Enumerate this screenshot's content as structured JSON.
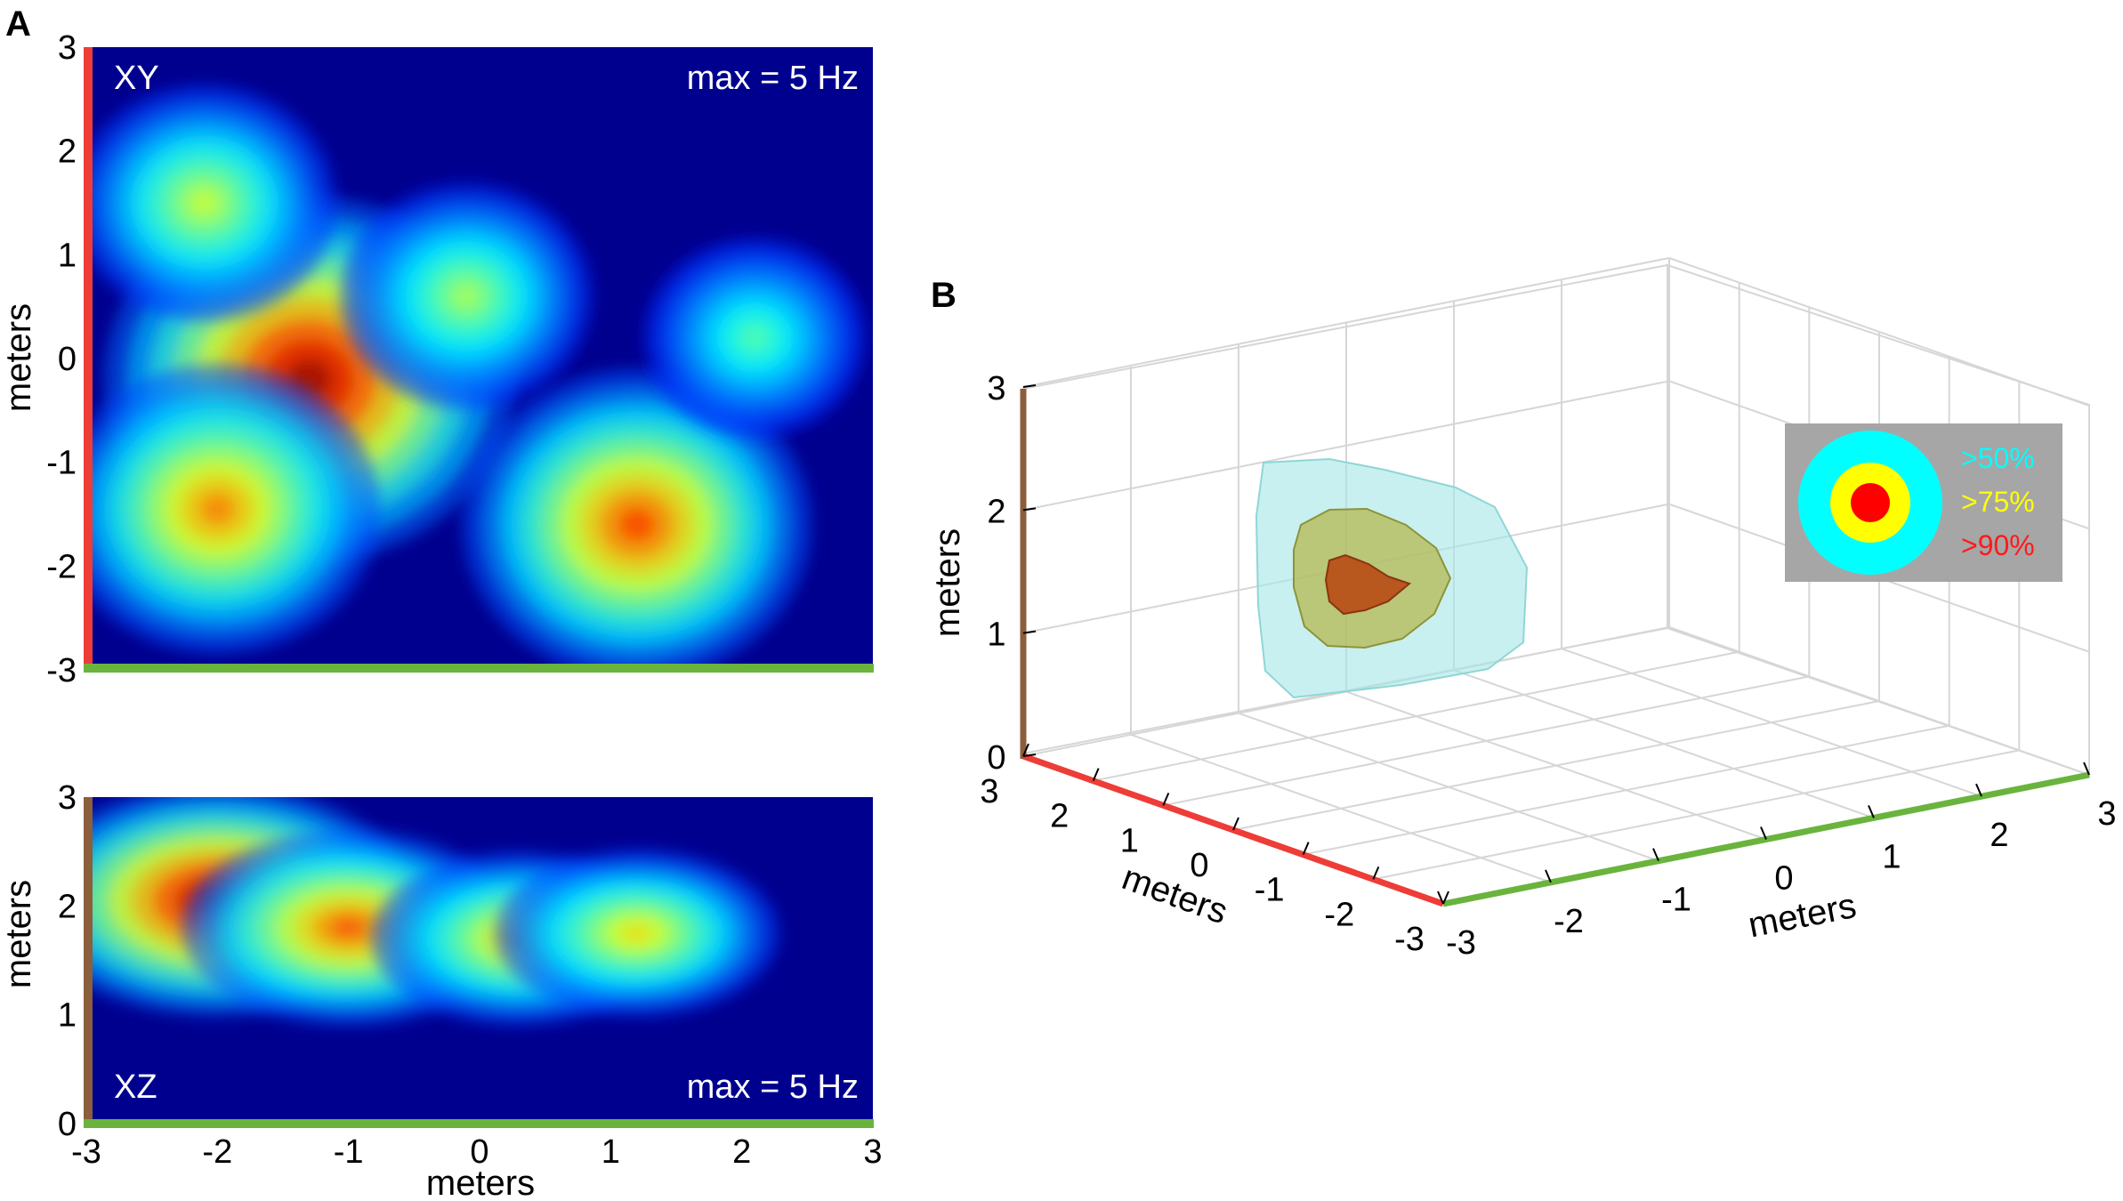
{
  "chart_data": [
    {
      "type": "heatmap",
      "panel": "A",
      "name": "XY",
      "label": "XY",
      "annotation": "max = 5 Hz",
      "max_rate_hz": 5,
      "colormap": "jet",
      "xlabel": "",
      "ylabel": "meters",
      "xlim": [
        -3,
        3
      ],
      "ylim": [
        -3,
        3
      ],
      "yticks": [
        "3",
        "2",
        "1",
        "0",
        "-1",
        "-2",
        "-3"
      ],
      "hotspots": [
        {
          "x": -1.3,
          "y": -0.2,
          "intensity": 1.0
        },
        {
          "x": 1.2,
          "y": -1.6,
          "intensity": 0.8
        },
        {
          "x": -2.0,
          "y": -1.45,
          "intensity": 0.72
        },
        {
          "x": -2.1,
          "y": 1.5,
          "intensity": 0.52
        },
        {
          "x": -0.1,
          "y": 0.6,
          "intensity": 0.48
        },
        {
          "x": 2.1,
          "y": 0.2,
          "intensity": 0.38
        }
      ]
    },
    {
      "type": "heatmap",
      "panel": "A",
      "name": "XZ",
      "label": "XZ",
      "annotation": "max = 5 Hz",
      "max_rate_hz": 5,
      "colormap": "jet",
      "xlabel": "meters",
      "ylabel": "meters",
      "xlim": [
        -3,
        3
      ],
      "ylim": [
        0,
        3
      ],
      "xticks": [
        "-3",
        "-2",
        "-1",
        "0",
        "1",
        "2",
        "3"
      ],
      "yticks": [
        "3",
        "2",
        "1",
        "0"
      ],
      "hotspots": [
        {
          "x": -2.0,
          "z": 2.05,
          "intensity": 1.0
        },
        {
          "x": -1.0,
          "z": 1.8,
          "intensity": 0.78
        },
        {
          "x": 0.3,
          "z": 1.7,
          "intensity": 0.64
        },
        {
          "x": 1.2,
          "z": 1.75,
          "intensity": 0.6
        }
      ]
    },
    {
      "type": "isosurface3d",
      "panel": "B",
      "xlabel": "meters",
      "ylabel": "meters",
      "zlabel": "meters",
      "xlim": [
        -3,
        3
      ],
      "ylim": [
        -3,
        3
      ],
      "zlim": [
        0,
        3
      ],
      "x_ticks": [
        "-3",
        "-2",
        "-1",
        "0",
        "1",
        "2",
        "3"
      ],
      "y_ticks": [
        "3",
        "2",
        "1",
        "0",
        "-1",
        "-2",
        "-3"
      ],
      "z_ticks": [
        "3",
        "2",
        "1",
        "0"
      ],
      "legend": {
        "position": "right",
        "entries": [
          {
            "label": ">50%",
            "color": "#00ffff"
          },
          {
            "label": ">75%",
            "color": "#ffff00"
          },
          {
            "label": ">90%",
            "color": "#ff0000"
          }
        ]
      }
    }
  ],
  "panel_labels": {
    "a": "A",
    "b": "B"
  },
  "colors": {
    "x_axis": "#6ab43e",
    "y_axis": "#ee3c37",
    "z_axis": "#8b5e3c",
    "background_low": "#00008f",
    "legend_bg": "#a6a6a6"
  }
}
